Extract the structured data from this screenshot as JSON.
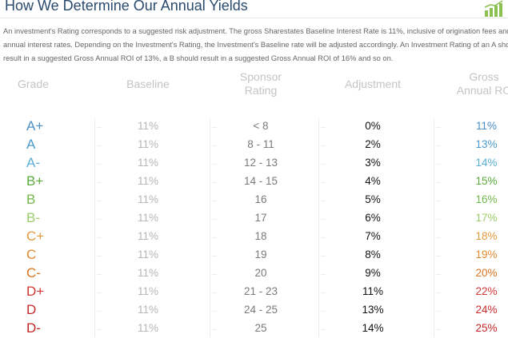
{
  "page": {
    "title": "How We Determine Our Annual Yields",
    "intro_lines": [
      "An investment's Rating corresponds to a suggested risk adjustment. The gross Sharestates Baseline Interest Rate is 11%, inclusive of origination fees and",
      "annual interest rates. Depending on the Investment's Rating, the Investment's Baseline rate will be adjusted accordingly. An Investment Rating of an A sho",
      "result in a suggested Gross Annual ROI of 13%, a B should result in a suggested Gross Annual ROI of 16% and so on."
    ],
    "icon": "bar-chart-trend-icon",
    "icon_color": "#8cc152"
  },
  "table": {
    "headers": {
      "grade": "Grade",
      "baseline": "Baseline",
      "sponsor_line1": "Sponsor",
      "sponsor_line2": "Rating",
      "adjustment": "Adjustment",
      "gross_line1": "Gross",
      "gross_line2": "Annual RO"
    },
    "rows": [
      {
        "grade": "A+",
        "baseline": "11%",
        "sponsor": "< 8",
        "adjustment": "0%",
        "gross": "11%",
        "color": "#4a8fc6"
      },
      {
        "grade": "A",
        "baseline": "11%",
        "sponsor": "8 - 11",
        "adjustment": "2%",
        "gross": "13%",
        "color": "#4a9acc"
      },
      {
        "grade": "A-",
        "baseline": "11%",
        "sponsor": "12 - 13",
        "adjustment": "3%",
        "gross": "14%",
        "color": "#5aaed4"
      },
      {
        "grade": "B+",
        "baseline": "11%",
        "sponsor": "14 - 15",
        "adjustment": "4%",
        "gross": "15%",
        "color": "#5aab3c"
      },
      {
        "grade": "B",
        "baseline": "11%",
        "sponsor": "16",
        "adjustment": "5%",
        "gross": "16%",
        "color": "#72b84a"
      },
      {
        "grade": "B-",
        "baseline": "11%",
        "sponsor": "17",
        "adjustment": "6%",
        "gross": "17%",
        "color": "#9ccc6a"
      },
      {
        "grade": "C+",
        "baseline": "11%",
        "sponsor": "18",
        "adjustment": "7%",
        "gross": "18%",
        "color": "#e39a3e"
      },
      {
        "grade": "C",
        "baseline": "11%",
        "sponsor": "19",
        "adjustment": "8%",
        "gross": "19%",
        "color": "#e0892f"
      },
      {
        "grade": "C-",
        "baseline": "11%",
        "sponsor": "20",
        "adjustment": "9%",
        "gross": "20%",
        "color": "#d8741f"
      },
      {
        "grade": "D+",
        "baseline": "11%",
        "sponsor": "21 - 23",
        "adjustment": "11%",
        "gross": "22%",
        "color": "#d43535"
      },
      {
        "grade": "D",
        "baseline": "11%",
        "sponsor": "24 - 25",
        "adjustment": "13%",
        "gross": "24%",
        "color": "#c82a2a"
      },
      {
        "grade": "D-",
        "baseline": "11%",
        "sponsor": "25",
        "adjustment": "14%",
        "gross": "25%",
        "color": "#c42424"
      }
    ]
  }
}
